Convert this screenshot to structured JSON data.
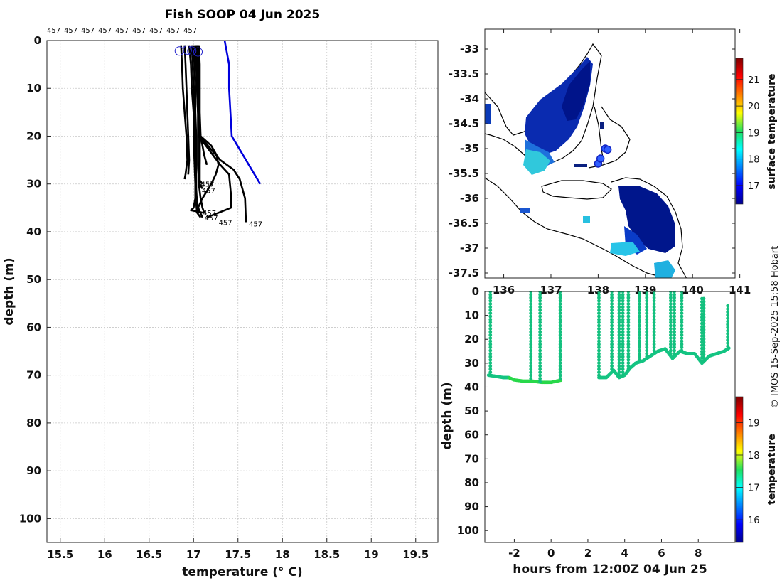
{
  "title": "Fish SOOP 04 Jun 2025",
  "credit": "© IMOS 15-Sep-2025 15:58 Hobart",
  "colors": {
    "profile": "#000000",
    "reference": "#0000dd",
    "marker": "#2222cc"
  },
  "chart_data": [
    {
      "type": "line",
      "name": "temperature-depth-profiles",
      "xlabel": "temperature (° C)",
      "ylabel": "depth (m)",
      "xlim": [
        15.35,
        19.75
      ],
      "ylim": [
        105,
        0
      ],
      "xticks": [
        15.5,
        16,
        16.5,
        17,
        17.5,
        18,
        18.5,
        19,
        19.5
      ],
      "yticks": [
        0,
        10,
        20,
        30,
        40,
        50,
        60,
        70,
        80,
        90,
        100
      ],
      "grid": true,
      "top_labels": [
        "457",
        "457",
        "457",
        "457",
        "457",
        "457",
        "457",
        "457",
        "457"
      ],
      "series": [
        {
          "name": "p1",
          "x": [
            16.86,
            16.87,
            16.88,
            16.9,
            16.92,
            16.93,
            16.91,
            16.9
          ],
          "y": [
            1,
            5,
            10,
            15,
            20,
            25,
            28,
            29
          ]
        },
        {
          "name": "p2",
          "x": [
            16.9,
            16.91,
            16.92,
            16.93,
            16.94,
            16.95,
            16.94
          ],
          "y": [
            1,
            5,
            10,
            15,
            20,
            25,
            28
          ]
        },
        {
          "name": "p3",
          "x": [
            16.95,
            16.97,
            16.98,
            17.0,
            17.0,
            17.01,
            17.02,
            17.02,
            17.0,
            16.97,
            17.05,
            17.1
          ],
          "y": [
            1,
            5,
            10,
            15,
            20,
            25,
            30,
            33,
            35,
            35.5,
            35.8,
            36
          ]
        },
        {
          "name": "p4",
          "x": [
            16.98,
            16.99,
            17.0,
            17.01,
            17.01,
            17.02,
            17.02,
            17.03,
            17.04,
            17.08
          ],
          "y": [
            1,
            5,
            10,
            15,
            20,
            25,
            30,
            34,
            36,
            37
          ]
        },
        {
          "name": "p5",
          "x": [
            17.0,
            17.01,
            17.02,
            17.02,
            17.03,
            17.03,
            17.03,
            17.04,
            17.07
          ],
          "y": [
            1,
            5,
            10,
            15,
            20,
            25,
            31,
            34,
            36
          ]
        },
        {
          "name": "p6",
          "x": [
            17.03,
            17.04,
            17.04,
            17.05,
            17.05,
            17.05,
            17.06,
            17.1
          ],
          "y": [
            1,
            5,
            10,
            15,
            20,
            26,
            29,
            30
          ]
        },
        {
          "name": "p7",
          "x": [
            17.05,
            17.05,
            17.06,
            17.06,
            17.07,
            17.07,
            17.07,
            17.1
          ],
          "y": [
            1,
            5,
            10,
            15,
            20,
            25,
            30,
            31
          ]
        },
        {
          "name": "p8",
          "x": [
            17.06,
            17.07,
            17.07,
            17.07,
            17.08,
            17.1,
            17.12,
            17.15
          ],
          "y": [
            1,
            5,
            10,
            15,
            20,
            22,
            24,
            26
          ]
        },
        {
          "name": "p9",
          "x": [
            17.02,
            17.03,
            17.04,
            17.05,
            17.08,
            17.2,
            17.26,
            17.28,
            17.25,
            17.2,
            17.1,
            17.05,
            17.1
          ],
          "y": [
            1,
            5,
            10,
            15,
            20,
            22,
            24,
            26,
            28,
            30,
            33,
            35,
            37
          ]
        },
        {
          "name": "p10",
          "x": [
            17.04,
            17.05,
            17.05,
            17.06,
            17.06,
            17.3,
            17.4,
            17.42,
            17.42,
            17.15
          ],
          "y": [
            1,
            5,
            10,
            15,
            20,
            26,
            28,
            32,
            35,
            37
          ]
        },
        {
          "name": "p11",
          "x": [
            17.04,
            17.05,
            17.06,
            17.06,
            17.07,
            17.3,
            17.45,
            17.52,
            17.58,
            17.59
          ],
          "y": [
            1,
            5,
            10,
            15,
            20,
            25,
            27,
            29,
            33,
            38
          ]
        },
        {
          "name": "p12",
          "x": [
            17.05,
            17.06,
            17.06,
            17.06,
            17.07,
            17.07,
            17.06,
            17.08,
            17.1,
            17.12
          ],
          "y": [
            1,
            5,
            10,
            15,
            20,
            25,
            30,
            33,
            35,
            36
          ]
        }
      ],
      "reference_line": {
        "name": "climatology",
        "x": [
          17.35,
          17.4,
          17.4,
          17.43,
          17.75
        ],
        "y": [
          0,
          5,
          10,
          20,
          30
        ]
      },
      "surface_markers": [
        {
          "x": 16.84,
          "y": 1
        },
        {
          "x": 16.93,
          "y": 0.8
        },
        {
          "x": 16.98,
          "y": 1
        },
        {
          "x": 17.05,
          "y": 1.2
        }
      ],
      "end_labels": [
        {
          "text": "457",
          "x": 17.05,
          "y": 30
        },
        {
          "text": "457",
          "x": 17.06,
          "y": 31.3
        },
        {
          "text": "457",
          "x": 17.07,
          "y": 36
        },
        {
          "text": "457",
          "x": 17.09,
          "y": 37
        },
        {
          "text": "457",
          "x": 17.25,
          "y": 38
        },
        {
          "text": "457",
          "x": 17.59,
          "y": 38.3
        }
      ]
    },
    {
      "type": "heatmap",
      "name": "sea-surface-temperature-map",
      "xlim": [
        135.6,
        140.9
      ],
      "ylim": [
        -37.6,
        -32.6
      ],
      "xticks": [
        136,
        137,
        138,
        139,
        140,
        141
      ],
      "yticks": [
        -33,
        -33.5,
        -34,
        -34.5,
        -35,
        -35.5,
        -36,
        -36.5,
        -37,
        -37.5
      ],
      "xticklabels": [
        "136",
        "137",
        "138",
        "139",
        "140",
        "141"
      ],
      "yticklabels": [
        "-33",
        "-33.5",
        "-34",
        "-34.5",
        "-35",
        "-35.5",
        "-36",
        "-36.5",
        "-37",
        "-37.5"
      ],
      "colorbar_label": "surface temperature",
      "colorbar_range": [
        16.3,
        21.8
      ],
      "colorbar_ticks": [
        17,
        18,
        19,
        20,
        21
      ],
      "colorbar_ticklabels": [
        "17",
        "18",
        "19",
        "20",
        "21"
      ],
      "track_points": [
        [
          138.0,
          -35.3
        ],
        [
          138.05,
          -35.2
        ],
        [
          138.15,
          -35.0
        ],
        [
          138.2,
          -35.02
        ]
      ]
    },
    {
      "type": "scatter",
      "name": "depth-time-section",
      "xlabel": "hours from 12:00Z 04 Jun 25",
      "ylabel": "depth (m)",
      "xlim": [
        -3.6,
        10
      ],
      "ylim": [
        105,
        0
      ],
      "xticks": [
        -2,
        0,
        2,
        4,
        6,
        8
      ],
      "xticklabels": [
        "-2",
        "0",
        "2",
        "4",
        "6",
        "8"
      ],
      "yticks": [
        0,
        10,
        20,
        30,
        40,
        50,
        60,
        70,
        80,
        90,
        100
      ],
      "yticklabels": [
        "0",
        "10",
        "20",
        "30",
        "40",
        "50",
        "60",
        "70",
        "80",
        "90",
        "100"
      ],
      "colorbar_label": "temperature",
      "colorbar_range": [
        15.3,
        19.8
      ],
      "colorbar_ticks": [
        16,
        17,
        18,
        19
      ],
      "colorbar_ticklabels": [
        "16",
        "17",
        "18",
        "19"
      ],
      "track_x": [
        -3.4,
        -3.0,
        -2.6,
        -2.3,
        -2.0,
        -1.5,
        -1.0,
        -0.5,
        0,
        0.6,
        2.6,
        3.0,
        3.4,
        3.7,
        4.0,
        4.3,
        4.6,
        5.0,
        5.4,
        5.8,
        6.2,
        6.6,
        7.0,
        7.4,
        7.8,
        8.2,
        8.6,
        9.0,
        9.4,
        9.7
      ],
      "track_y": [
        35,
        35.5,
        36,
        36,
        37,
        37.5,
        37.5,
        38,
        38,
        37,
        36,
        36,
        33,
        36,
        35,
        32,
        30,
        29,
        27,
        25,
        24,
        28,
        25,
        26,
        26,
        30,
        27,
        26,
        25,
        23.5
      ],
      "casts_x": [
        -3.3,
        -1.1,
        -0.6,
        0.5,
        2.6,
        3.3,
        3.7,
        3.9,
        4.2,
        4.8,
        5.2,
        5.6,
        6.5,
        6.7,
        7.1,
        8.2,
        8.3,
        9.6
      ],
      "casts_top": [
        0,
        0,
        0,
        0,
        0,
        0,
        0,
        0,
        0,
        0,
        0,
        0,
        0,
        0,
        0,
        3,
        3,
        6
      ]
    }
  ]
}
